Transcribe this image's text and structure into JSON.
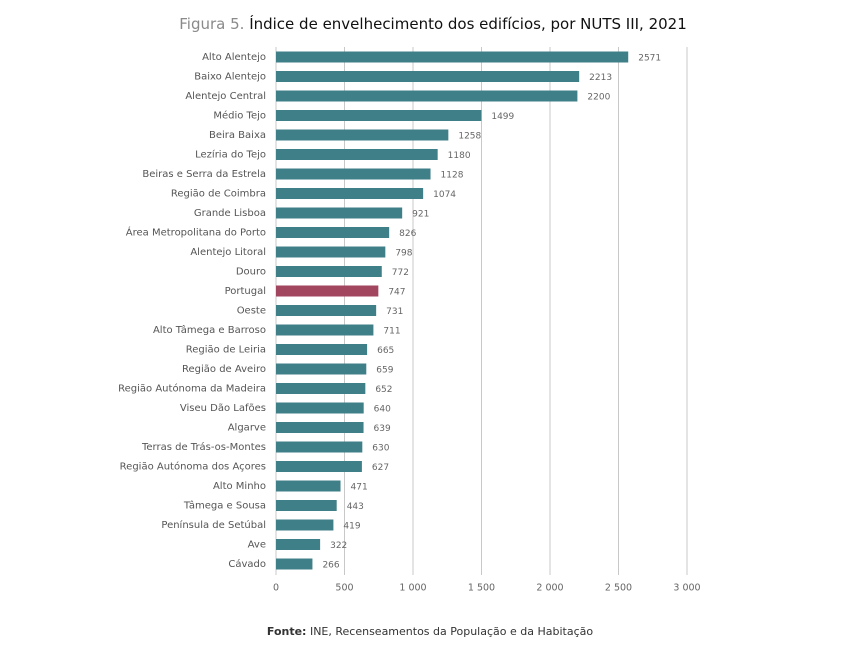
{
  "chart_data": {
    "type": "hbar",
    "title_label": "Figura 5.",
    "title": "Índice de envelhecimento dos edifícios, por NUTS III, 2021",
    "source_label": "Fonte:",
    "source": "INE, Recenseamentos da População e da Habitação",
    "categories": [
      "Alto Alentejo",
      "Baixo Alentejo",
      "Alentejo Central",
      "Médio Tejo",
      "Beira Baixa",
      "Lezíria do Tejo",
      "Beiras e Serra da Estrela",
      "Região de Coimbra",
      "Grande Lisboa",
      "Área Metropolitana do Porto",
      "Alentejo Litoral",
      "Douro",
      "Portugal",
      "Oeste",
      "Alto Tâmega e Barroso",
      "Região de Leiria",
      "Região de Aveiro",
      "Região Autónoma da Madeira",
      "Viseu Dão Lafões",
      "Algarve",
      "Terras de Trás-os-Montes",
      "Região Autónoma dos Açores",
      "Alto Minho",
      "Tâmega e Sousa",
      "Península de Setúbal",
      "Ave",
      "Cávado"
    ],
    "values": [
      2571,
      2213,
      2200,
      1499,
      1258,
      1180,
      1128,
      1074,
      921,
      826,
      798,
      772,
      747,
      731,
      711,
      665,
      659,
      652,
      640,
      639,
      630,
      627,
      471,
      443,
      419,
      322,
      266
    ],
    "colors": [
      "#3f7f88",
      "#3f7f88",
      "#3f7f88",
      "#3f7f88",
      "#3f7f88",
      "#3f7f88",
      "#3f7f88",
      "#3f7f88",
      "#3f7f88",
      "#3f7f88",
      "#3f7f88",
      "#3f7f88",
      "#a2465f",
      "#3f7f88",
      "#3f7f88",
      "#3f7f88",
      "#3f7f88",
      "#3f7f88",
      "#3f7f88",
      "#3f7f88",
      "#3f7f88",
      "#3f7f88",
      "#3f7f88",
      "#3f7f88",
      "#3f7f88",
      "#3f7f88",
      "#3f7f88"
    ],
    "xlim": [
      0,
      3000
    ],
    "xticks": [
      0,
      500,
      {
        "value": 1000,
        "label": "1 000"
      },
      {
        "value": 1500,
        "label": "1 500"
      },
      {
        "value": 2000,
        "label": "2 000"
      },
      {
        "value": 2500,
        "label": "2 500"
      },
      {
        "value": 3000,
        "label": "3 000"
      }
    ],
    "grid": true
  }
}
